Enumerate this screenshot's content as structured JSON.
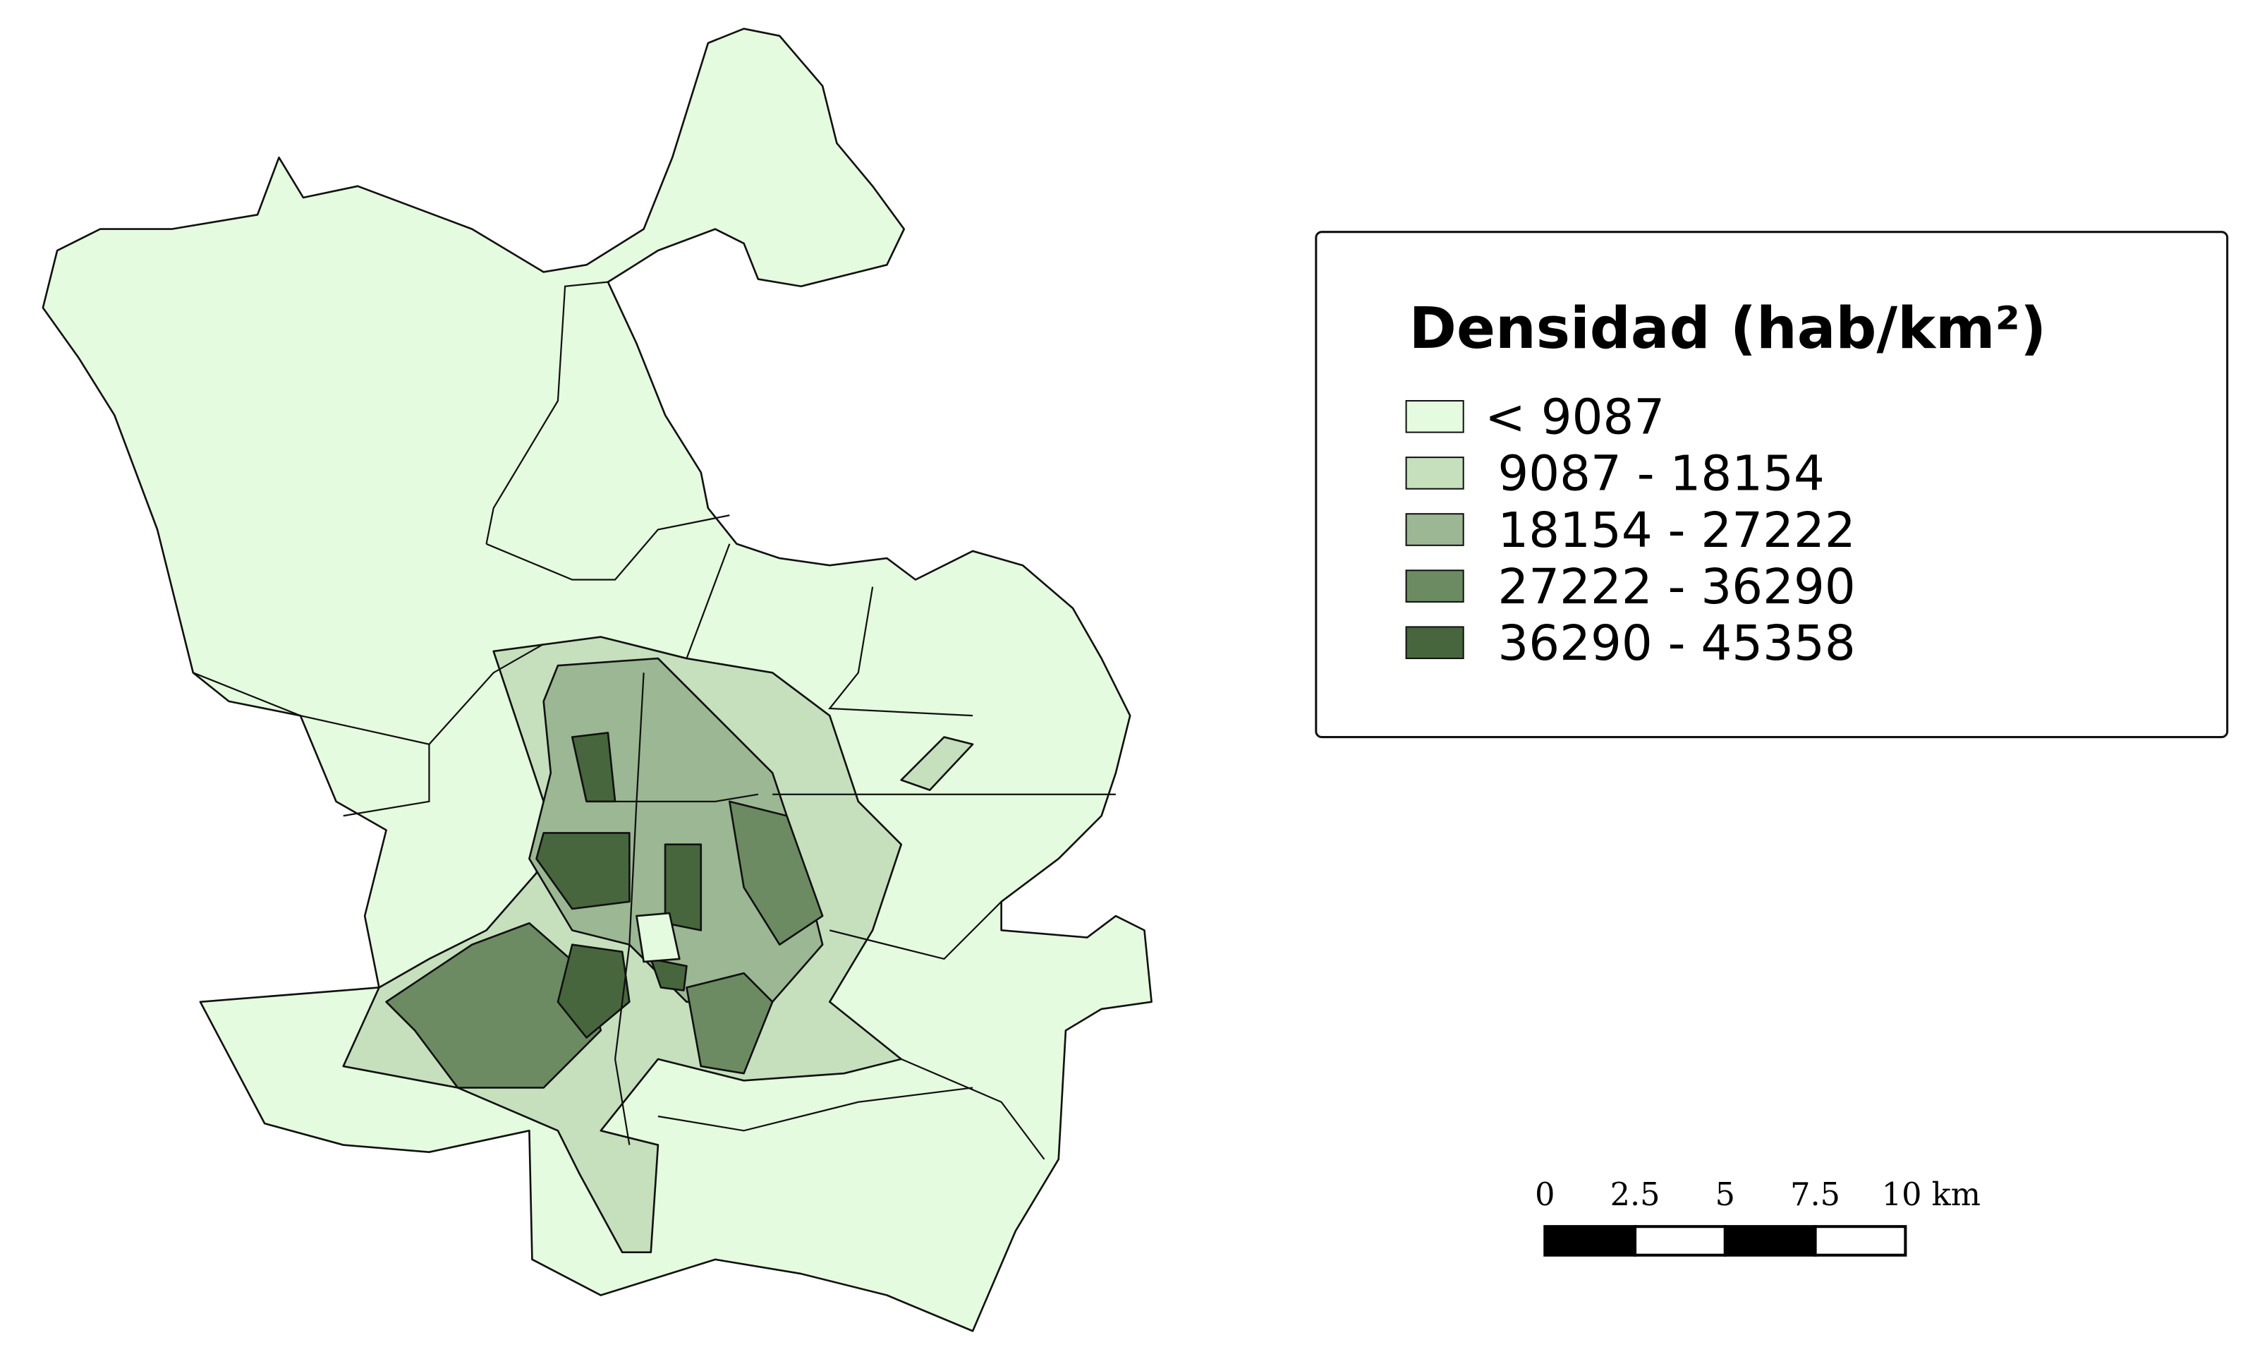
{
  "legend": {
    "title": "Densidad (hab/km²)",
    "classes": [
      {
        "label": "< 9087",
        "color": "#e5fbdf"
      },
      {
        "label": "9087 - 18154",
        "color": "#c6e0bd"
      },
      {
        "label": "18154 - 27222",
        "color": "#9bb793"
      },
      {
        "label": "27222 - 36290",
        "color": "#6d8b62"
      },
      {
        "label": "36290 - 45358",
        "color": "#47663d"
      }
    ]
  },
  "scale_bar": {
    "ticks": [
      0,
      2.5,
      5,
      7.5,
      {
        "value": 10,
        "label": "10 km"
      }
    ]
  }
}
